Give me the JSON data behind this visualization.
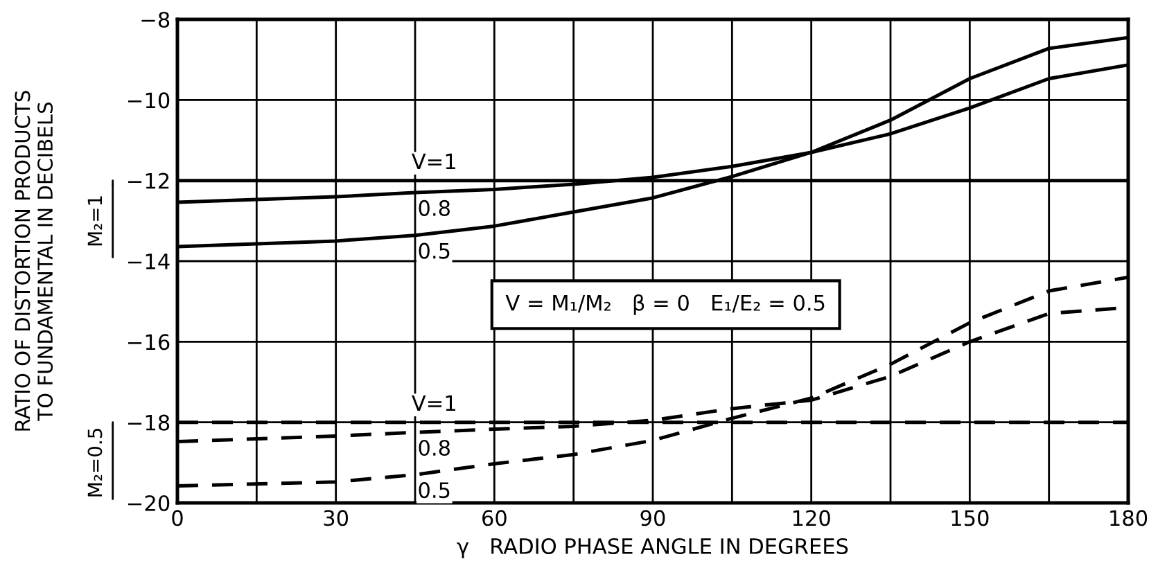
{
  "chart_data": {
    "type": "line",
    "xlabel": "γ   RADIO PHASE ANGLE IN DEGREES",
    "ylabel": "RATIO OF DISTORTION PRODUCTS\nTO FUNDAMENTAL IN DECIBELS",
    "x": [
      0,
      30,
      45,
      60,
      75,
      90,
      105,
      120,
      135,
      150,
      165,
      180
    ],
    "series": [
      {
        "name": "V=1",
        "color": "#000000",
        "line_style": "solid",
        "values": [
          -12.0,
          -12.0,
          -12.0,
          -12.0,
          -12.0,
          -12.0,
          -12.0,
          -12.0,
          -12.0,
          -12.0,
          -12.0,
          -12.0
        ]
      },
      {
        "name": "0.8",
        "color": "#000000",
        "line_style": "solid",
        "values": [
          -12.54,
          -12.4,
          -12.3,
          -12.22,
          -12.09,
          -11.92,
          -11.65,
          -11.3,
          -10.84,
          -10.2,
          -9.47,
          -9.13
        ]
      },
      {
        "name": "0.5",
        "color": "#000000",
        "line_style": "solid",
        "values": [
          -13.64,
          -13.5,
          -13.36,
          -13.13,
          -12.78,
          -12.43,
          -11.9,
          -11.3,
          -10.5,
          -9.47,
          -8.72,
          -8.45
        ]
      },
      {
        "name": "V=1",
        "color": "#000000",
        "line_style": "dashed",
        "values": [
          -18.0,
          -18.0,
          -18.0,
          -18.0,
          -18.0,
          -18.0,
          -18.0,
          -18.0,
          -18.0,
          -18.0,
          -18.0,
          -18.0
        ]
      },
      {
        "name": "0.8",
        "color": "#000000",
        "line_style": "dashed",
        "values": [
          -18.48,
          -18.34,
          -18.25,
          -18.17,
          -18.1,
          -17.95,
          -17.66,
          -17.45,
          -16.86,
          -16.0,
          -15.3,
          -15.15
        ]
      },
      {
        "name": "0.5",
        "color": "#000000",
        "line_style": "dashed",
        "values": [
          -19.58,
          -19.48,
          -19.3,
          -19.03,
          -18.8,
          -18.45,
          -17.9,
          -17.4,
          -16.56,
          -15.53,
          -14.74,
          -14.4
        ]
      }
    ],
    "xlim": [
      0,
      180
    ],
    "ylim": [
      -20,
      -8
    ],
    "xticks": [
      0,
      {
        "value": 15,
        "label": null
      },
      30,
      {
        "value": 45,
        "label": null
      },
      60,
      {
        "value": 75,
        "label": null
      },
      90,
      {
        "value": 105,
        "label": null
      },
      120,
      {
        "value": 135,
        "label": null
      },
      150,
      {
        "value": 165,
        "label": null
      },
      180
    ],
    "yticks": [
      -20,
      -18,
      -16,
      -14,
      -12,
      -10,
      -8
    ],
    "grid": true,
    "legend": false,
    "marker": "none",
    "annotations": [
      "M₂=1",
      "M₂=0.5",
      "V = M₁/M₂   β = 0   E₁/E₂ = 0.5"
    ]
  }
}
